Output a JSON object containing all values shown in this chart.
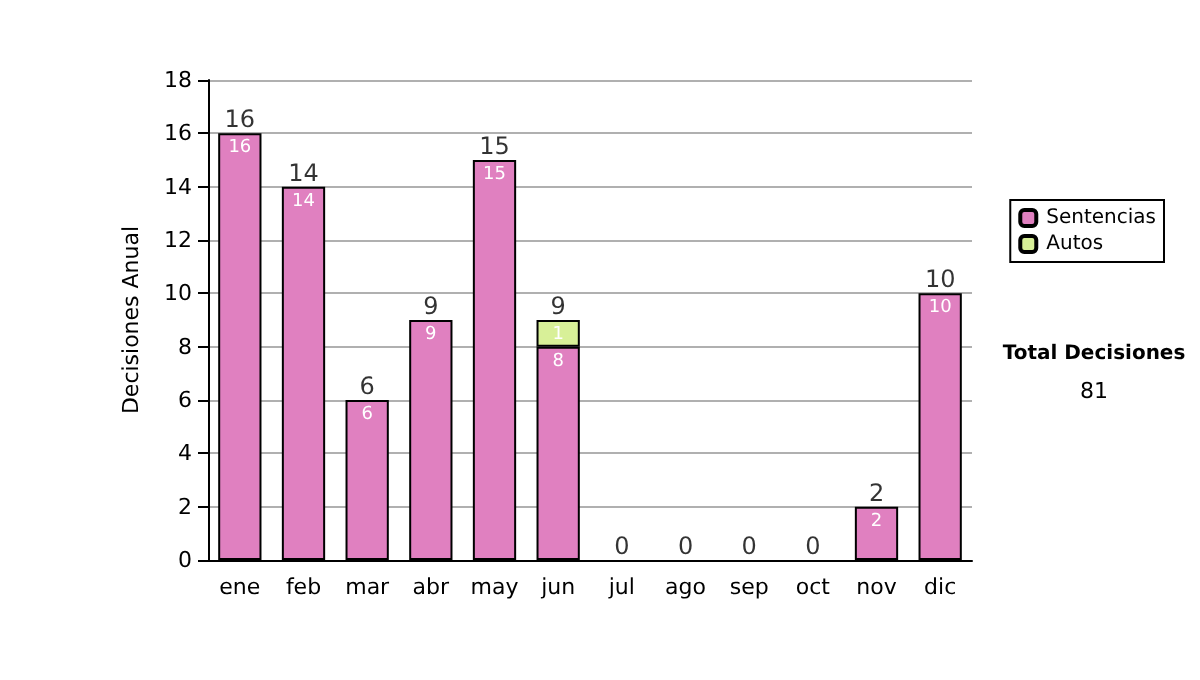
{
  "chart_data": {
    "type": "bar",
    "stacked": true,
    "ylabel": "Decisiones Anual",
    "categories": [
      "ene",
      "feb",
      "mar",
      "abr",
      "may",
      "jun",
      "jul",
      "ago",
      "sep",
      "oct",
      "nov",
      "dic"
    ],
    "series": [
      {
        "name": "Sentencias",
        "color": "#e080c0",
        "values": [
          16,
          14,
          6,
          9,
          15,
          8,
          0,
          0,
          0,
          0,
          2,
          10
        ],
        "value_labels": [
          "16",
          "14",
          "6",
          "9",
          "15",
          "8",
          null,
          null,
          null,
          null,
          "2",
          "10"
        ]
      },
      {
        "name": "Autos",
        "color": "#d8f098",
        "values": [
          0,
          0,
          0,
          0,
          0,
          1,
          0,
          0,
          0,
          0,
          0,
          0
        ],
        "value_labels": [
          null,
          null,
          null,
          null,
          null,
          "1",
          null,
          null,
          null,
          null,
          null,
          null
        ]
      }
    ],
    "totals": [
      "16",
      "14",
      "6",
      "9",
      "15",
      "9",
      "0",
      "0",
      "0",
      "0",
      "2",
      "10"
    ],
    "ylim": [
      0,
      18
    ],
    "yticks": [
      0,
      2,
      4,
      6,
      8,
      10,
      12,
      14,
      16,
      18
    ],
    "grid": "y",
    "legend": "right",
    "annotations": [
      "Total Decisiones",
      "81"
    ]
  }
}
